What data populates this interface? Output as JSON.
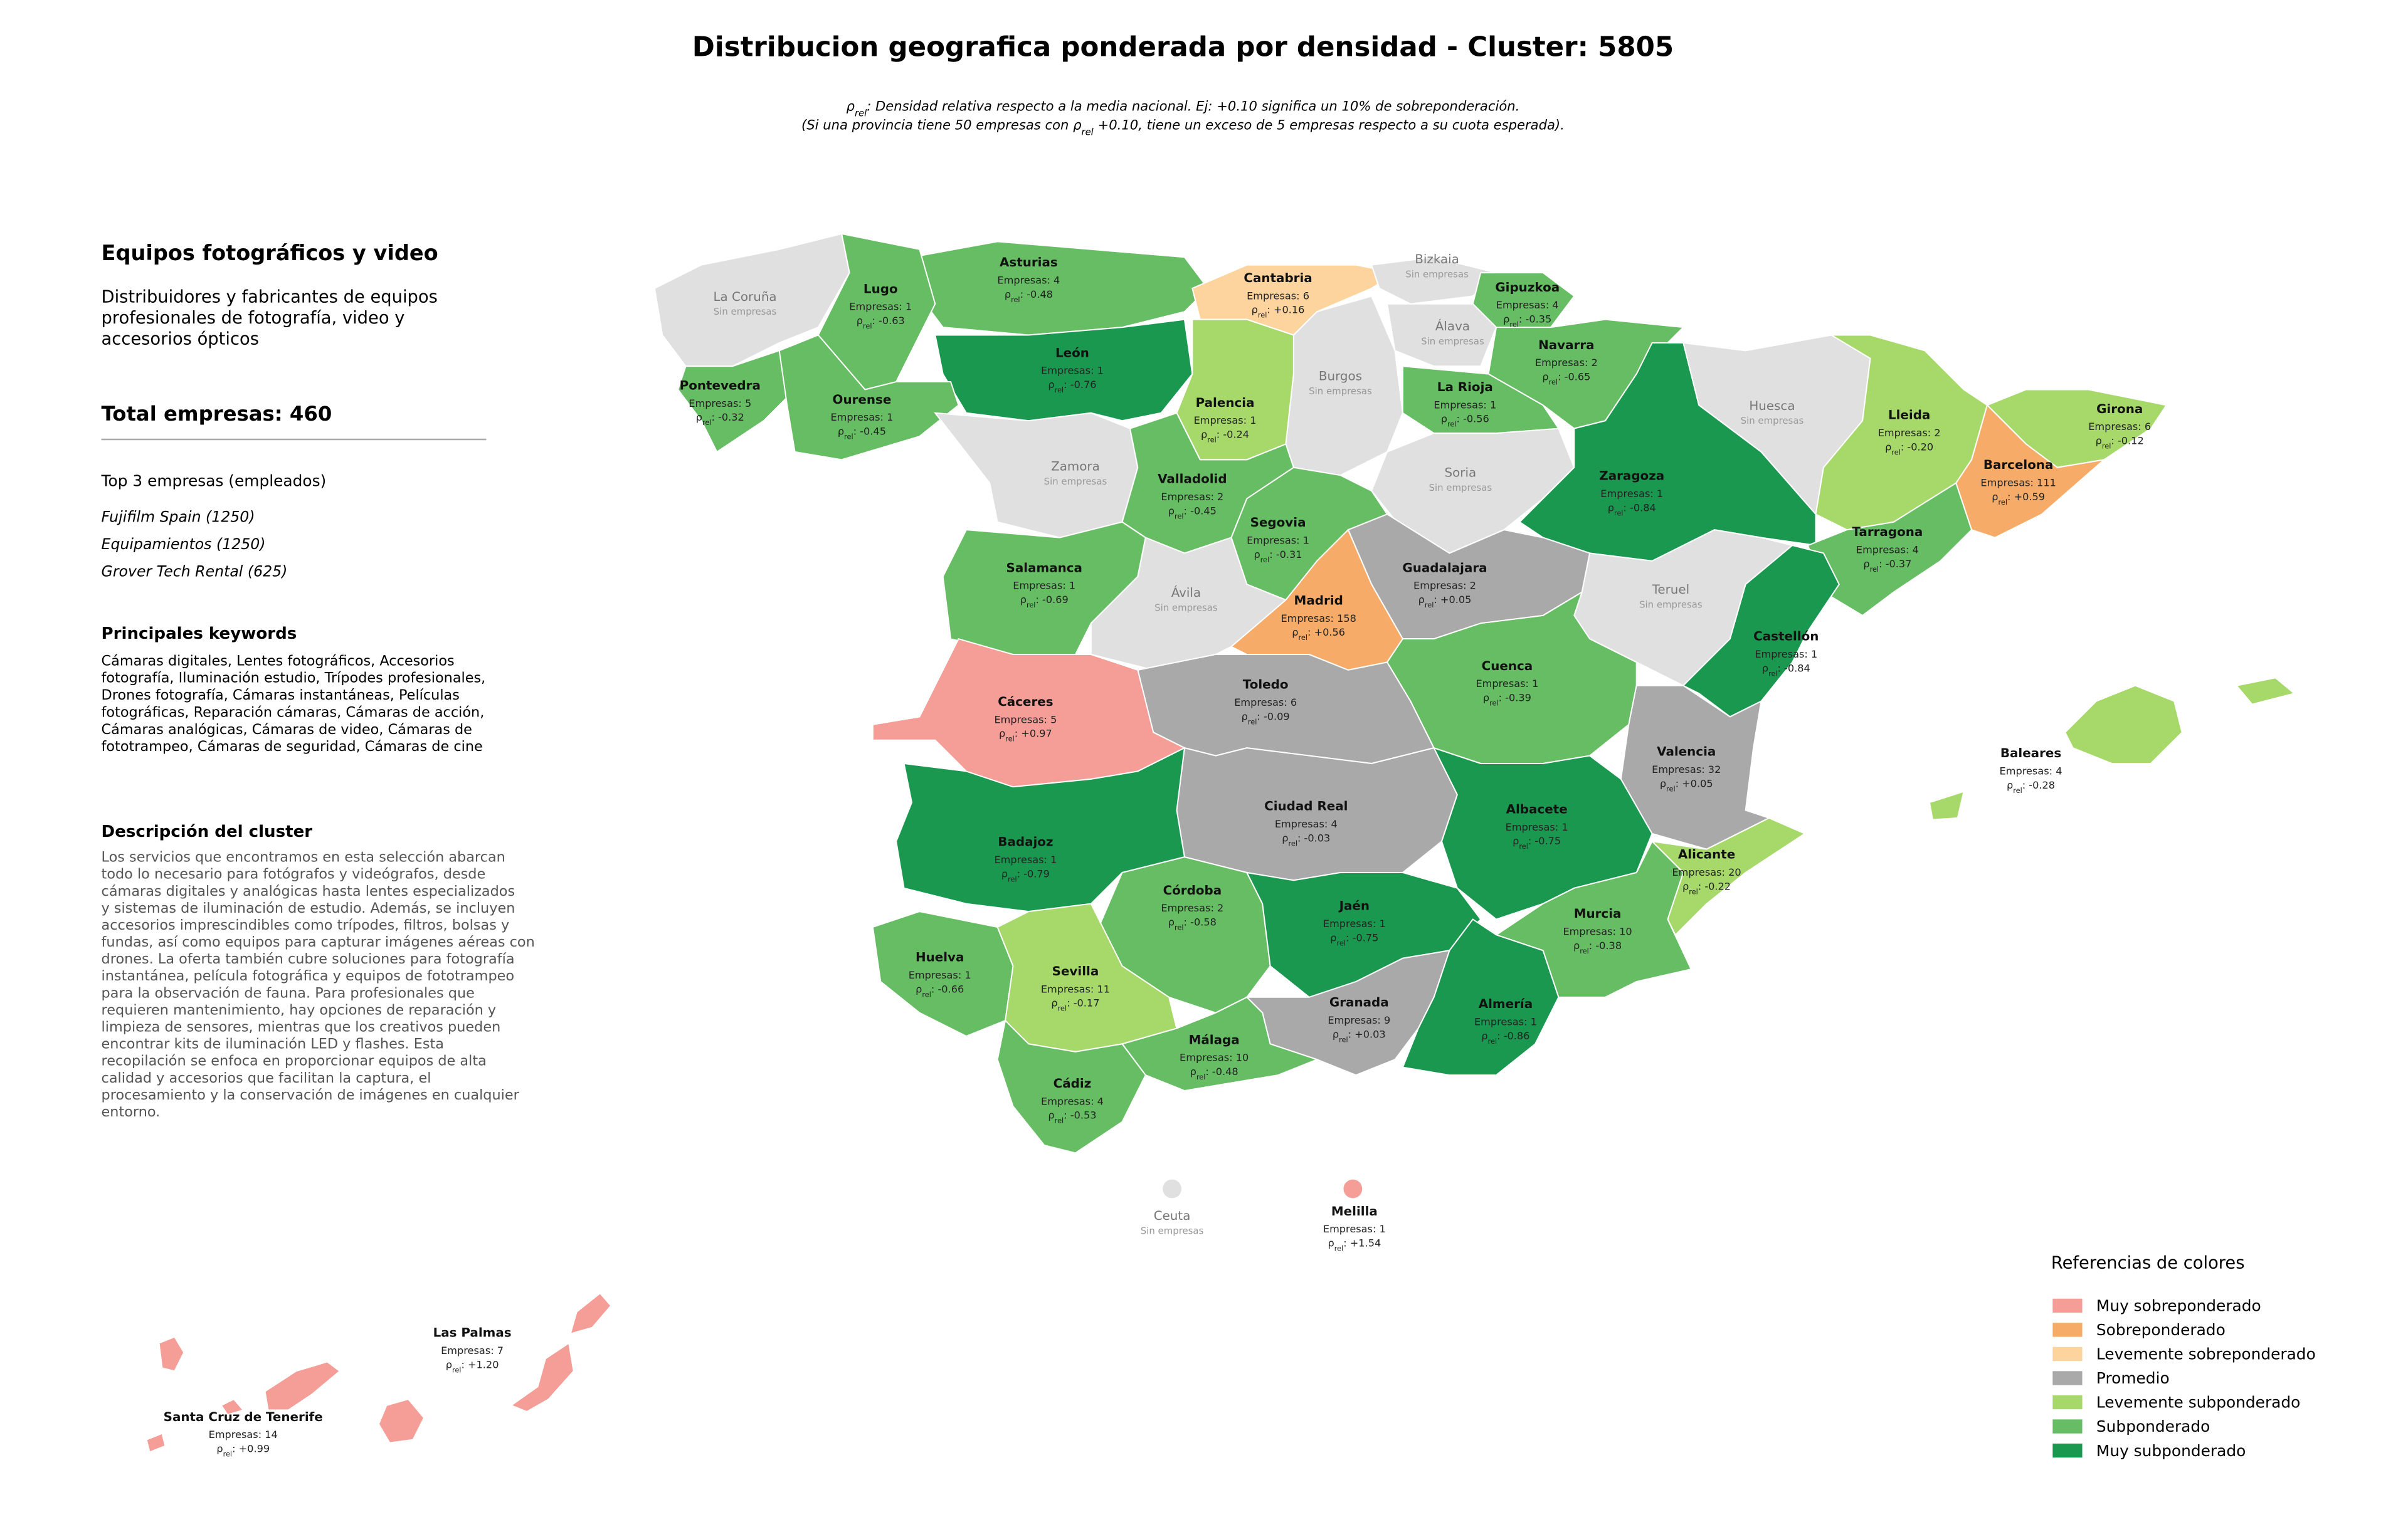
{
  "header": {
    "title": "Distribucion geografica ponderada por densidad - Cluster: 5805",
    "subtitle": [
      {
        "before": "ρ",
        "sub": "rel",
        "after": ": Densidad relativa respecto a la media nacional. Ej: +0.10 significa un 10% de sobreponderación."
      },
      {
        "before": "(Si una provincia tiene 50 empresas con ρ",
        "sub": "rel",
        "after": " +0.10, tiene un exceso de 5 empresas respecto a su cuota esperada)."
      }
    ]
  },
  "sidebar": {
    "heading": "Equipos fotográficos y video",
    "description": [
      "Distribuidores y fabricantes de equipos",
      "profesionales de fotografía, video y",
      "accesorios ópticos"
    ],
    "total": "Total empresas: 460",
    "top_title": "Top 3 empresas (empleados)",
    "top": [
      "Fujifilm Spain (1250)",
      "Equipamientos (1250)",
      "Grover Tech Rental (625)"
    ],
    "keywords_title": "Principales keywords",
    "keywords": [
      "Cámaras digitales, Lentes fotográficos, Accesorios",
      "fotografía, Iluminación estudio, Trípodes profesionales,",
      "Drones fotografía, Cámaras instantáneas, Películas",
      "fotográficas, Reparación cámaras, Cámaras de acción,",
      "Cámaras analógicas, Cámaras de video, Cámaras de",
      "fototrampeo, Cámaras de seguridad, Cámaras de cine"
    ],
    "cluster_title": "Descripción del cluster",
    "cluster": [
      "Los servicios que encontramos en esta selección abarcan",
      "todo lo necesario para fotógrafos y videógrafos, desde",
      "cámaras digitales y analógicas hasta lentes especializados",
      "y sistemas de iluminación de estudio. Además, se incluyen",
      "accesorios imprescindibles como trípodes, filtros, bolsas y",
      "fundas, así como equipos para capturar imágenes aéreas con",
      "drones. La oferta también cubre soluciones para fotografía",
      "instantánea, película fotográfica y equipos de fototrampeo",
      "para la observación de fauna. Para profesionales que",
      "requieren mantenimiento, hay opciones de reparación y",
      "limpieza de sensores, mientras que los creativos pueden",
      "encontrar kits de iluminación LED y flashes. Esta",
      "recopilación se enfoca en proporcionar equipos de alta",
      "calidad y accesorios que facilitan la captura, el",
      "procesamiento y la conservación de imágenes en cualquier",
      "entorno."
    ]
  },
  "map": {
    "rho_symbol": "ρ",
    "rho_sub": "rel",
    "empty_color": "#e0e0e0",
    "provinces": [
      {
        "name": "Asturias",
        "empresas": "Empresas: 4",
        "rho": ": -0.48",
        "color": "#66bd63"
      },
      {
        "name": "Cantabria",
        "empresas": "Empresas: 6",
        "rho": ": +0.16",
        "color": "#fdd49e"
      },
      {
        "name": "Bizkaia",
        "status": "Sin empresas"
      },
      {
        "name": "Lugo",
        "empresas": "Empresas: 1",
        "rho": ": -0.63",
        "color": "#66bd63"
      },
      {
        "name": "Gipuzkoa",
        "empresas": "Empresas: 4",
        "rho": ": -0.35",
        "color": "#66bd63"
      },
      {
        "name": "La Coruña",
        "status": "Sin empresas"
      },
      {
        "name": "Álava",
        "status": "Sin empresas"
      },
      {
        "name": "León",
        "empresas": "Empresas: 1",
        "rho": ": -0.76",
        "color": "#1a9850"
      },
      {
        "name": "Navarra",
        "empresas": "Empresas: 2",
        "rho": ": -0.65",
        "color": "#66bd63"
      },
      {
        "name": "Pontevedra",
        "empresas": "Empresas: 5",
        "rho": ": -0.32",
        "color": "#66bd63"
      },
      {
        "name": "La Rioja",
        "empresas": "Empresas: 1",
        "rho": ": -0.56",
        "color": "#66bd63"
      },
      {
        "name": "Ourense",
        "empresas": "Empresas: 1",
        "rho": ": -0.45",
        "color": "#66bd63"
      },
      {
        "name": "Palencia",
        "empresas": "Empresas: 1",
        "rho": ": -0.24",
        "color": "#a6d96a"
      },
      {
        "name": "Burgos",
        "status": "Sin empresas"
      },
      {
        "name": "Huesca",
        "status": "Sin empresas"
      },
      {
        "name": "Lleida",
        "empresas": "Empresas: 2",
        "rho": ": -0.20",
        "color": "#a6d96a"
      },
      {
        "name": "Girona",
        "empresas": "Empresas: 6",
        "rho": ": -0.12",
        "color": "#a6d96a"
      },
      {
        "name": "Zamora",
        "status": "Sin empresas"
      },
      {
        "name": "Soria",
        "status": "Sin empresas"
      },
      {
        "name": "Zaragoza",
        "empresas": "Empresas: 1",
        "rho": ": -0.84",
        "color": "#1a9850"
      },
      {
        "name": "Barcelona",
        "empresas": "Empresas: 111",
        "rho": ": +0.59",
        "color": "#f6ac68"
      },
      {
        "name": "Valladolid",
        "empresas": "Empresas: 2",
        "rho": ": -0.45",
        "color": "#66bd63"
      },
      {
        "name": "Segovia",
        "empresas": "Empresas: 1",
        "rho": ": -0.31",
        "color": "#66bd63"
      },
      {
        "name": "Tarragona",
        "empresas": "Empresas: 4",
        "rho": ": -0.37",
        "color": "#66bd63"
      },
      {
        "name": "Salamanca",
        "empresas": "Empresas: 1",
        "rho": ": -0.69",
        "color": "#66bd63"
      },
      {
        "name": "Guadalajara",
        "empresas": "Empresas: 2",
        "rho": ": +0.05",
        "color": "#a9a9a9"
      },
      {
        "name": "Ávila",
        "status": "Sin empresas"
      },
      {
        "name": "Madrid",
        "empresas": "Empresas: 158",
        "rho": ": +0.56",
        "color": "#f6ac68"
      },
      {
        "name": "Teruel",
        "status": "Sin empresas"
      },
      {
        "name": "Castellón",
        "empresas": "Empresas: 1",
        "rho": ": -0.84",
        "color": "#1a9850"
      },
      {
        "name": "Cuenca",
        "empresas": "Empresas: 1",
        "rho": ": -0.39",
        "color": "#66bd63"
      },
      {
        "name": "Toledo",
        "empresas": "Empresas: 6",
        "rho": ": -0.09",
        "color": "#a9a9a9"
      },
      {
        "name": "Cáceres",
        "empresas": "Empresas: 5",
        "rho": ": +0.97",
        "color": "#f59d97"
      },
      {
        "name": "Valencia",
        "empresas": "Empresas: 32",
        "rho": ": +0.05",
        "color": "#a9a9a9"
      },
      {
        "name": "Baleares",
        "empresas": "Empresas: 4",
        "rho": ": -0.28",
        "color": "#a6d96a"
      },
      {
        "name": "Ciudad Real",
        "empresas": "Empresas: 4",
        "rho": ": -0.03",
        "color": "#a9a9a9"
      },
      {
        "name": "Albacete",
        "empresas": "Empresas: 1",
        "rho": ": -0.75",
        "color": "#1a9850"
      },
      {
        "name": "Badajoz",
        "empresas": "Empresas: 1",
        "rho": ": -0.79",
        "color": "#1a9850"
      },
      {
        "name": "Alicante",
        "empresas": "Empresas: 20",
        "rho": ": -0.22",
        "color": "#a6d96a"
      },
      {
        "name": "Córdoba",
        "empresas": "Empresas: 2",
        "rho": ": -0.58",
        "color": "#66bd63"
      },
      {
        "name": "Jaén",
        "empresas": "Empresas: 1",
        "rho": ": -0.75",
        "color": "#1a9850"
      },
      {
        "name": "Murcia",
        "empresas": "Empresas: 10",
        "rho": ": -0.38",
        "color": "#66bd63"
      },
      {
        "name": "Huelva",
        "empresas": "Empresas: 1",
        "rho": ": -0.66",
        "color": "#66bd63"
      },
      {
        "name": "Sevilla",
        "empresas": "Empresas: 11",
        "rho": ": -0.17",
        "color": "#a6d96a"
      },
      {
        "name": "Granada",
        "empresas": "Empresas: 9",
        "rho": ": +0.03",
        "color": "#a9a9a9"
      },
      {
        "name": "Almería",
        "empresas": "Empresas: 1",
        "rho": ": -0.86",
        "color": "#1a9850"
      },
      {
        "name": "Málaga",
        "empresas": "Empresas: 10",
        "rho": ": -0.48",
        "color": "#66bd63"
      },
      {
        "name": "Cádiz",
        "empresas": "Empresas: 4",
        "rho": ": -0.53",
        "color": "#66bd63"
      },
      {
        "name": "Ceuta",
        "status": "Sin empresas"
      },
      {
        "name": "Melilla",
        "empresas": "Empresas: 1",
        "rho": ": +1.54",
        "color": "#f59d97"
      },
      {
        "name": "Las Palmas",
        "empresas": "Empresas: 7",
        "rho": ": +1.20",
        "color": "#f59d97"
      },
      {
        "name": "Santa Cruz de Tenerife",
        "empresas": "Empresas: 14",
        "rho": ": +0.99",
        "color": "#f59d97"
      }
    ]
  },
  "legend": {
    "title": "Referencias de colores",
    "items": [
      {
        "label": "Muy sobreponderado",
        "color": "#f59d97"
      },
      {
        "label": "Sobreponderado",
        "color": "#f6ac68"
      },
      {
        "label": "Levemente sobreponderado",
        "color": "#fdd49e"
      },
      {
        "label": "Promedio",
        "color": "#a9a9a9"
      },
      {
        "label": "Levemente subponderado",
        "color": "#a6d96a"
      },
      {
        "label": "Subponderado",
        "color": "#66bd63"
      },
      {
        "label": "Muy subponderado",
        "color": "#1a9850"
      }
    ]
  }
}
